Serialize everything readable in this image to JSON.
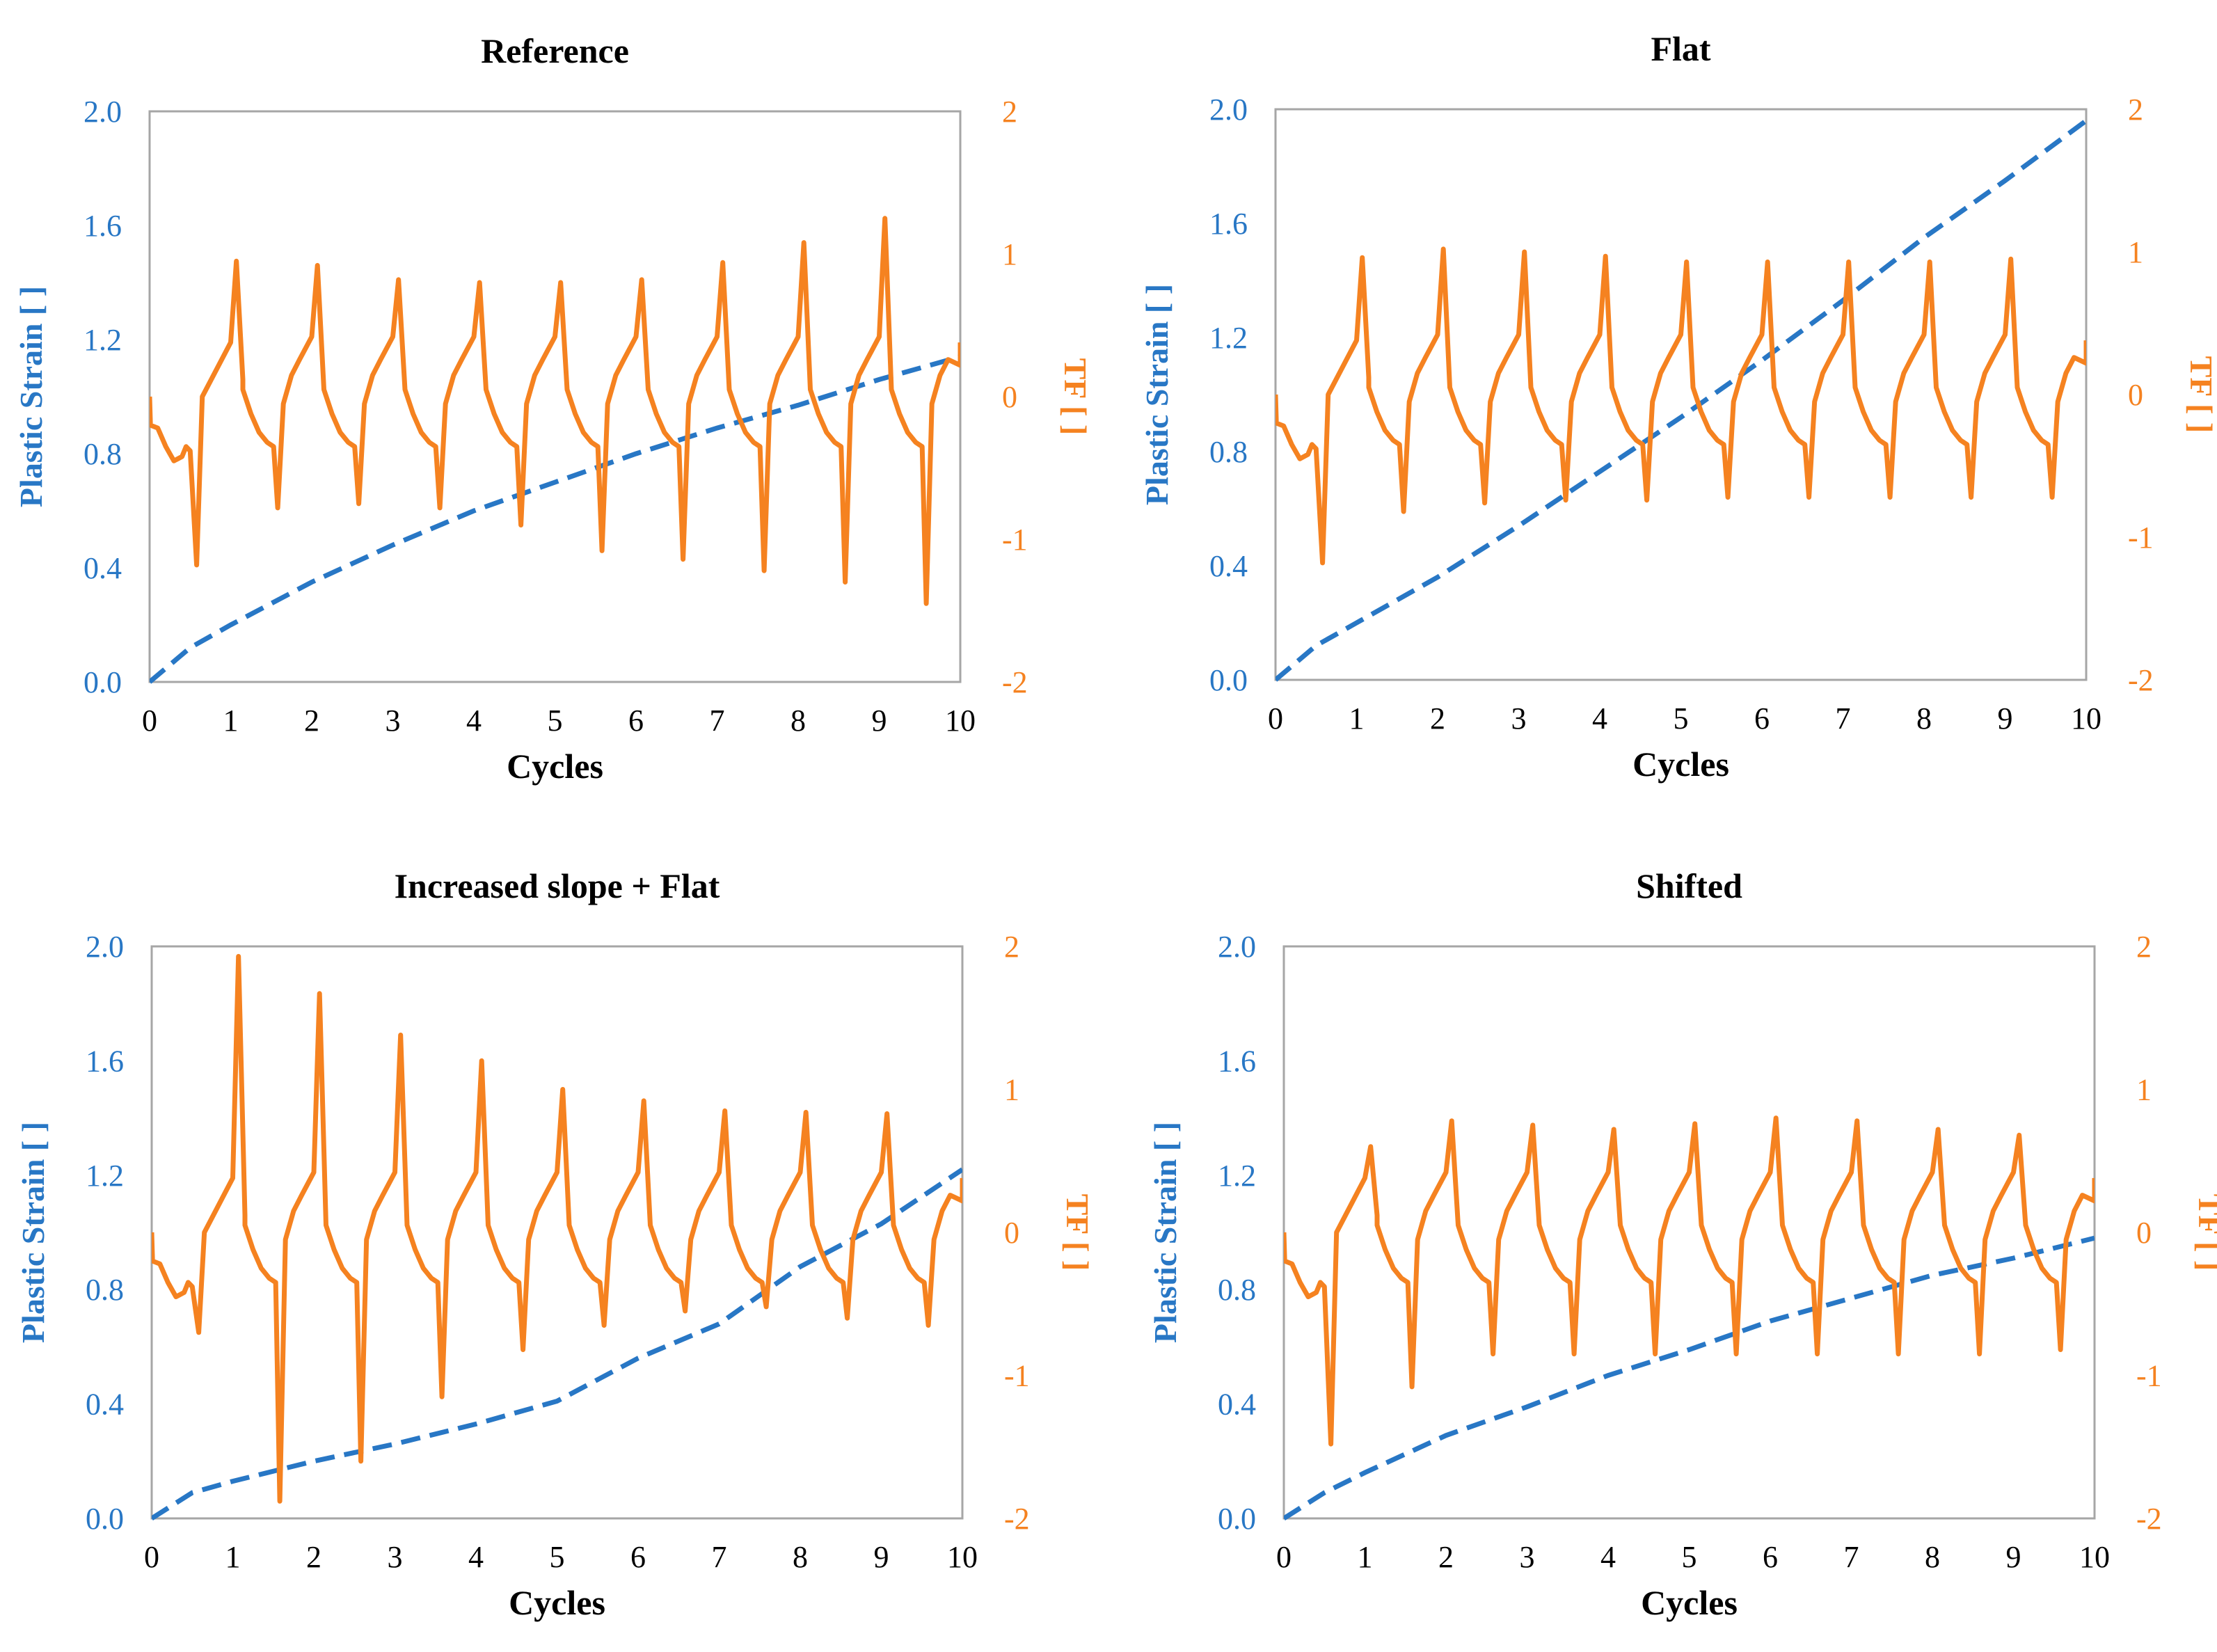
{
  "colors": {
    "strain": "#2877c5",
    "tf": "#f58220",
    "axis": "#a6a6a6",
    "text": "#000000"
  },
  "chart_data": [
    {
      "type": "line",
      "title": "Reference",
      "xlabel": "Cycles",
      "ylabel_left": "Plastic Strain [ ]",
      "ylabel_right": "TF [ ]",
      "xlim": [
        0,
        10
      ],
      "ylim_left": [
        0.0,
        2.0
      ],
      "ylim_right": [
        -2,
        2
      ],
      "x_ticks": [
        "0",
        "1",
        "2",
        "3",
        "4",
        "5",
        "6",
        "7",
        "8",
        "9",
        "10"
      ],
      "y_left_ticks": [
        "0.0",
        "0.4",
        "0.8",
        "1.2",
        "1.6",
        "2.0"
      ],
      "y_right_ticks": [
        "-2",
        "-1",
        "0",
        "1",
        "2"
      ],
      "series": [
        {
          "name": "Plastic Strain",
          "axis": "left",
          "style": "dashed",
          "values": [
            [
              0,
              0
            ],
            [
              0.5,
              0.12
            ],
            [
              1,
              0.2
            ],
            [
              2,
              0.35
            ],
            [
              3,
              0.48
            ],
            [
              4,
              0.6
            ],
            [
              5,
              0.7
            ],
            [
              6,
              0.8
            ],
            [
              7,
              0.89
            ],
            [
              8,
              0.97
            ],
            [
              9,
              1.06
            ],
            [
              10,
              1.14
            ]
          ]
        },
        {
          "name": "TF",
          "axis": "right",
          "style": "solid",
          "peaks": [
            0.95,
            0.92,
            0.82,
            0.8,
            0.8,
            0.82,
            0.94,
            1.08,
            1.25
          ],
          "troughs": [
            -1.18,
            -0.78,
            -0.75,
            -0.78,
            -0.9,
            -1.08,
            -1.14,
            -1.22,
            -1.3,
            -1.45
          ],
          "values": [
            [
              0,
              0
            ],
            [
              0.01,
              -0.2
            ],
            [
              0.1,
              -0.22
            ],
            [
              0.2,
              -0.35
            ],
            [
              0.3,
              -0.45
            ],
            [
              0.4,
              -0.42
            ],
            [
              0.45,
              -0.35
            ],
            [
              0.5,
              -0.38
            ],
            [
              0.58,
              -1.18
            ],
            [
              0.65,
              0.0
            ],
            [
              1.0,
              0.38
            ],
            [
              1.07,
              0.95
            ],
            [
              1.15,
              0.12
            ]
          ]
        }
      ]
    },
    {
      "type": "line",
      "title": "Flat",
      "xlabel": "Cycles",
      "ylabel_left": "Plastic Strain [ ]",
      "ylabel_right": "TF [ ]",
      "xlim": [
        0,
        10
      ],
      "ylim_left": [
        0.0,
        2.0
      ],
      "ylim_right": [
        -2,
        2
      ],
      "x_ticks": [
        "0",
        "1",
        "2",
        "3",
        "4",
        "5",
        "6",
        "7",
        "8",
        "9",
        "10"
      ],
      "y_left_ticks": [
        "0.0",
        "0.4",
        "0.8",
        "1.2",
        "1.6",
        "2.0"
      ],
      "y_right_ticks": [
        "-2",
        "-1",
        "0",
        "1",
        "2"
      ],
      "series": [
        {
          "name": "Plastic Strain",
          "axis": "left",
          "style": "dashed",
          "values": [
            [
              0,
              0
            ],
            [
              0.5,
              0.12
            ],
            [
              1,
              0.2
            ],
            [
              2,
              0.36
            ],
            [
              3,
              0.54
            ],
            [
              4,
              0.73
            ],
            [
              5,
              0.92
            ],
            [
              6,
              1.12
            ],
            [
              7,
              1.33
            ],
            [
              8,
              1.55
            ],
            [
              9,
              1.75
            ],
            [
              10,
              1.96
            ]
          ]
        },
        {
          "name": "TF",
          "axis": "right",
          "style": "solid",
          "peaks": [
            0.96,
            1.02,
            1.0,
            0.97,
            0.93,
            0.93,
            0.93,
            0.93,
            0.95
          ],
          "troughs": [
            -1.18,
            -0.82,
            -0.76,
            -0.74,
            -0.74,
            -0.72,
            -0.72,
            -0.72,
            -0.72,
            -0.72
          ],
          "values": [
            [
              0,
              0
            ],
            [
              0.01,
              -0.2
            ],
            [
              0.1,
              -0.22
            ],
            [
              0.2,
              -0.35
            ],
            [
              0.3,
              -0.45
            ],
            [
              0.4,
              -0.42
            ],
            [
              0.45,
              -0.35
            ],
            [
              0.5,
              -0.38
            ],
            [
              0.58,
              -1.18
            ],
            [
              0.65,
              0.0
            ],
            [
              1.0,
              0.38
            ],
            [
              1.07,
              0.96
            ],
            [
              1.15,
              0.12
            ]
          ]
        }
      ]
    },
    {
      "type": "line",
      "title": "Increased slope + Flat",
      "xlabel": "Cycles",
      "ylabel_left": "Plastic Strain [ ]",
      "ylabel_right": "TF [ ]",
      "xlim": [
        0,
        10
      ],
      "ylim_left": [
        0.0,
        2.0
      ],
      "ylim_right": [
        -2,
        2
      ],
      "x_ticks": [
        "0",
        "1",
        "2",
        "3",
        "4",
        "5",
        "6",
        "7",
        "8",
        "9",
        "10"
      ],
      "y_left_ticks": [
        "0.0",
        "0.4",
        "0.8",
        "1.2",
        "1.6",
        "2.0"
      ],
      "y_right_ticks": [
        "-2",
        "-1",
        "0",
        "1",
        "2"
      ],
      "series": [
        {
          "name": "Plastic Strain",
          "axis": "left",
          "style": "dashed",
          "values": [
            [
              0,
              0
            ],
            [
              0.5,
              0.09
            ],
            [
              1,
              0.13
            ],
            [
              2,
              0.2
            ],
            [
              3,
              0.26
            ],
            [
              4,
              0.33
            ],
            [
              5,
              0.41
            ],
            [
              6,
              0.56
            ],
            [
              7,
              0.68
            ],
            [
              8,
              0.88
            ],
            [
              9,
              1.03
            ],
            [
              10,
              1.22
            ]
          ]
        },
        {
          "name": "TF",
          "axis": "right",
          "style": "solid",
          "peaks": [
            1.93,
            1.67,
            1.38,
            1.2,
            1.0,
            0.92,
            0.85,
            0.84,
            0.83
          ],
          "troughs": [
            -0.7,
            -1.88,
            -1.6,
            -1.15,
            -0.82,
            -0.65,
            -0.55,
            -0.52,
            -0.6,
            -0.65
          ],
          "values": [
            [
              0,
              0
            ],
            [
              0.01,
              -0.2
            ],
            [
              0.1,
              -0.22
            ],
            [
              0.2,
              -0.35
            ],
            [
              0.3,
              -0.45
            ],
            [
              0.4,
              -0.42
            ],
            [
              0.45,
              -0.35
            ],
            [
              0.5,
              -0.38
            ],
            [
              0.58,
              -0.7
            ],
            [
              0.65,
              0.0
            ],
            [
              1.0,
              0.38
            ],
            [
              1.07,
              1.93
            ],
            [
              1.15,
              0.12
            ]
          ]
        }
      ]
    },
    {
      "type": "line",
      "title": "Shifted",
      "xlabel": "Cycles",
      "ylabel_left": "Plastic Strain [ ]",
      "ylabel_right": "TF [ ]",
      "xlim": [
        0,
        10
      ],
      "ylim_left": [
        0.0,
        2.0
      ],
      "ylim_right": [
        -2,
        2
      ],
      "x_ticks": [
        "0",
        "1",
        "2",
        "3",
        "4",
        "5",
        "6",
        "7",
        "8",
        "9",
        "10"
      ],
      "y_left_ticks": [
        "0.0",
        "0.4",
        "0.8",
        "1.2",
        "1.6",
        "2.0"
      ],
      "y_right_ticks": [
        "-2",
        "-1",
        "0",
        "1",
        "2"
      ],
      "series": [
        {
          "name": "Plastic Strain",
          "axis": "left",
          "style": "dashed",
          "values": [
            [
              0,
              0
            ],
            [
              0.5,
              0.09
            ],
            [
              1,
              0.16
            ],
            [
              2,
              0.29
            ],
            [
              3,
              0.39
            ],
            [
              4,
              0.5
            ],
            [
              5,
              0.59
            ],
            [
              6,
              0.69
            ],
            [
              7,
              0.77
            ],
            [
              8,
              0.85
            ],
            [
              9,
              0.91
            ],
            [
              10,
              0.98
            ]
          ]
        },
        {
          "name": "TF",
          "axis": "right",
          "style": "solid",
          "peaks": [
            0.6,
            0.78,
            0.75,
            0.72,
            0.76,
            0.8,
            0.78,
            0.72,
            0.68
          ],
          "troughs": [
            -1.48,
            -1.08,
            -0.85,
            -0.85,
            -0.85,
            -0.85,
            -0.85,
            -0.85,
            -0.85,
            -0.82
          ],
          "values": [
            [
              0,
              0
            ],
            [
              0.01,
              -0.2
            ],
            [
              0.1,
              -0.22
            ],
            [
              0.2,
              -0.35
            ],
            [
              0.3,
              -0.45
            ],
            [
              0.4,
              -0.42
            ],
            [
              0.45,
              -0.35
            ],
            [
              0.5,
              -0.38
            ],
            [
              0.58,
              -1.48
            ],
            [
              0.65,
              0.0
            ],
            [
              1.0,
              0.38
            ],
            [
              1.07,
              0.6
            ],
            [
              1.15,
              0.12
            ]
          ]
        }
      ]
    }
  ]
}
